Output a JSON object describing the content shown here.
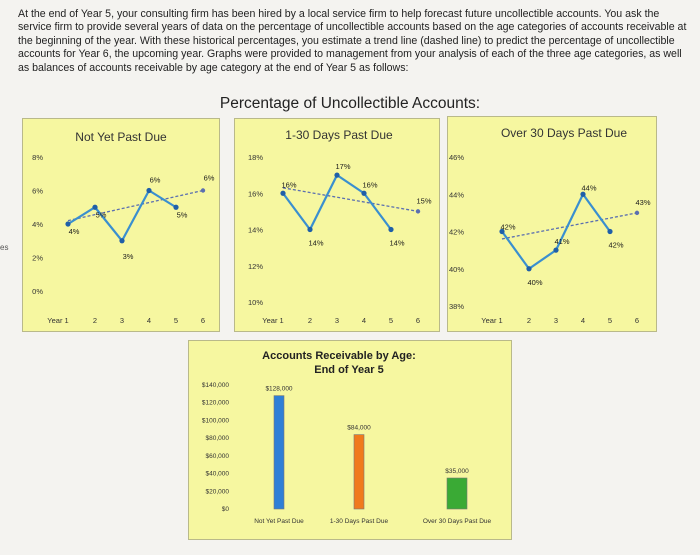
{
  "intro_text": "At the end of Year 5, your consulting firm has been hired by a local service firm to help forecast future uncollectible accounts. You ask the service firm to provide several years of data on the percentage of uncollectible accounts based on the age categories of accounts receivable at the beginning of the year. With these historical percentages, you estimate a trend line (dashed line) to predict the percentage of uncollectible accounts for Year 6, the upcoming year. Graphs were provided to management from your analysis of each of the three age categories, as well as balances of accounts receivable by age category at the end of Year 5 as follows:",
  "main_title": "Percentage of Uncollectible Accounts:",
  "edge_mark": "es",
  "colors": {
    "panel_bg": "#f6f7a0",
    "line": "#3a8fcf",
    "trend": "#5b6fb0",
    "bar_blue": "#2f7fd6",
    "bar_orange": "#f07a1c",
    "bar_green": "#3aaa35"
  },
  "chart_data": [
    {
      "type": "line",
      "title": "Not Yet Past Due",
      "x_labels": [
        "Year 1",
        "2",
        "3",
        "4",
        "5",
        "6"
      ],
      "values": [
        4,
        5,
        3,
        6,
        5,
        6
      ],
      "value_labels": [
        "4%",
        "5%",
        "3%",
        "6%",
        "5%",
        "6%"
      ],
      "y_ticks": [
        "0%",
        "2%",
        "4%",
        "6%",
        "8%"
      ],
      "ylim": [
        0,
        8
      ],
      "trend": {
        "from": 4.2,
        "to": 6
      }
    },
    {
      "type": "line",
      "title": "1-30 Days Past Due",
      "x_labels": [
        "Year 1",
        "2",
        "3",
        "4",
        "5",
        "6"
      ],
      "values": [
        16,
        14,
        17,
        16,
        14,
        15
      ],
      "value_labels": [
        "16%",
        "14%",
        "17%",
        "16%",
        "14%",
        "15%"
      ],
      "y_ticks": [
        "10%",
        "12%",
        "14%",
        "16%",
        "18%"
      ],
      "ylim": [
        10,
        18
      ],
      "trend": {
        "from": 16.3,
        "to": 15
      }
    },
    {
      "type": "line",
      "title": "Over 30 Days Past Due",
      "x_labels": [
        "Year 1",
        "2",
        "3",
        "4",
        "5",
        "6"
      ],
      "values": [
        42,
        40,
        41,
        44,
        42,
        43
      ],
      "value_labels": [
        "42%",
        "40%",
        "41%",
        "44%",
        "42%",
        "43%"
      ],
      "y_ticks": [
        "38%",
        "40%",
        "42%",
        "44%",
        "46%"
      ],
      "ylim": [
        38,
        46
      ],
      "trend": {
        "from": 41.6,
        "to": 43
      }
    },
    {
      "type": "bar",
      "title": "Accounts Receivable by Age:",
      "subtitle": "End of Year 5",
      "categories": [
        "Not Yet Past Due",
        "1-30 Days Past Due",
        "Over 30 Days Past Due"
      ],
      "values": [
        128000,
        84000,
        35000
      ],
      "value_labels": [
        "$128,000",
        "$84,000",
        "$35,000"
      ],
      "y_ticks": [
        "$0",
        "$20,000",
        "$40,000",
        "$60,000",
        "$80,000",
        "$100,000",
        "$120,000",
        "$140,000"
      ],
      "ylim": [
        0,
        140000
      ]
    }
  ]
}
